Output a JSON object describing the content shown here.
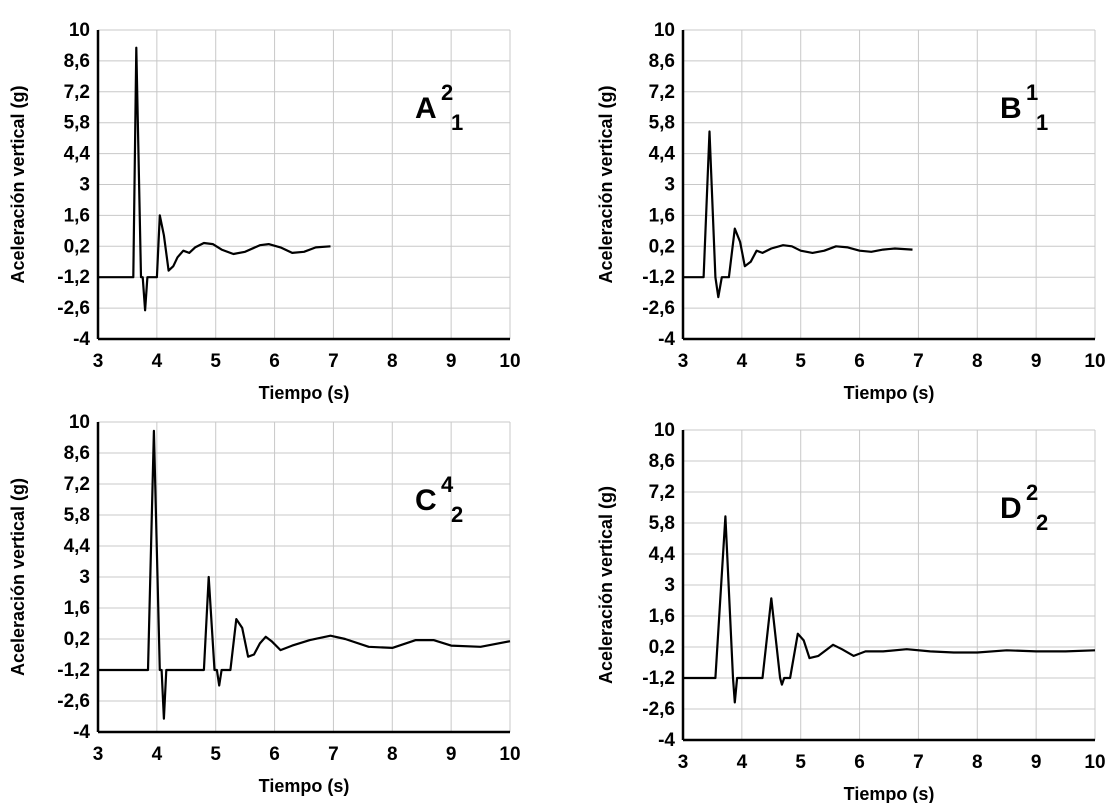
{
  "chart_data": [
    {
      "type": "line",
      "panel_label": {
        "letter": "A",
        "sup": "2",
        "sub": "1"
      },
      "xlabel": "Tiempo (s)",
      "ylabel": "Aceleración vertical (g)",
      "xlim": [
        3,
        10
      ],
      "ylim": [
        -4,
        10
      ],
      "x_ticks": [
        "3",
        "4",
        "5",
        "6",
        "7",
        "8",
        "9",
        "10"
      ],
      "y_ticks": [
        "10",
        "8,6",
        "7,2",
        "5,8",
        "4,4",
        "3",
        "1,6",
        "0,2",
        "-1,2",
        "-2,6",
        "-4"
      ],
      "grid": true,
      "series": [
        {
          "points": [
            [
              3.0,
              -1.2
            ],
            [
              3.55,
              -1.2
            ],
            [
              3.6,
              -1.2
            ],
            [
              3.65,
              9.2
            ],
            [
              3.73,
              -1.2
            ],
            [
              3.76,
              -1.2
            ],
            [
              3.8,
              -2.7
            ],
            [
              3.84,
              -1.2
            ],
            [
              4.0,
              -1.2
            ],
            [
              4.05,
              1.6
            ],
            [
              4.12,
              0.7
            ],
            [
              4.2,
              -0.9
            ],
            [
              4.28,
              -0.7
            ],
            [
              4.35,
              -0.3
            ],
            [
              4.45,
              0.0
            ],
            [
              4.55,
              -0.1
            ],
            [
              4.65,
              0.15
            ],
            [
              4.8,
              0.35
            ],
            [
              4.95,
              0.3
            ],
            [
              5.1,
              0.05
            ],
            [
              5.3,
              -0.15
            ],
            [
              5.5,
              -0.05
            ],
            [
              5.75,
              0.25
            ],
            [
              5.9,
              0.3
            ],
            [
              6.1,
              0.15
            ],
            [
              6.3,
              -0.1
            ],
            [
              6.5,
              -0.05
            ],
            [
              6.7,
              0.15
            ],
            [
              6.95,
              0.2
            ]
          ]
        }
      ]
    },
    {
      "type": "line",
      "panel_label": {
        "letter": "B",
        "sup": "1",
        "sub": "1"
      },
      "xlabel": "Tiempo (s)",
      "ylabel": "Aceleración vertical (g)",
      "xlim": [
        3,
        10
      ],
      "ylim": [
        -4,
        10
      ],
      "x_ticks": [
        "3",
        "4",
        "5",
        "6",
        "7",
        "8",
        "9",
        "10"
      ],
      "y_ticks": [
        "10",
        "8,6",
        "7,2",
        "5,8",
        "4,4",
        "3",
        "1,6",
        "0,2",
        "-1,2",
        "-2,6",
        "-4"
      ],
      "grid": true,
      "series": [
        {
          "points": [
            [
              3.0,
              -1.2
            ],
            [
              3.35,
              -1.2
            ],
            [
              3.45,
              5.4
            ],
            [
              3.55,
              -1.2
            ],
            [
              3.6,
              -2.1
            ],
            [
              3.66,
              -1.2
            ],
            [
              3.78,
              -1.2
            ],
            [
              3.88,
              1.0
            ],
            [
              3.97,
              0.4
            ],
            [
              4.05,
              -0.7
            ],
            [
              4.15,
              -0.5
            ],
            [
              4.25,
              0.0
            ],
            [
              4.35,
              -0.1
            ],
            [
              4.5,
              0.1
            ],
            [
              4.7,
              0.25
            ],
            [
              4.85,
              0.2
            ],
            [
              5.0,
              0.0
            ],
            [
              5.2,
              -0.1
            ],
            [
              5.4,
              0.0
            ],
            [
              5.6,
              0.2
            ],
            [
              5.8,
              0.15
            ],
            [
              6.0,
              0.0
            ],
            [
              6.2,
              -0.05
            ],
            [
              6.4,
              0.05
            ],
            [
              6.6,
              0.1
            ],
            [
              6.9,
              0.05
            ]
          ]
        }
      ]
    },
    {
      "type": "line",
      "panel_label": {
        "letter": "C",
        "sup": "4",
        "sub": "2"
      },
      "xlabel": "Tiempo (s)",
      "ylabel": "Aceleración vertical (g)",
      "xlim": [
        3,
        10
      ],
      "ylim": [
        -4,
        10
      ],
      "x_ticks": [
        "3",
        "4",
        "5",
        "6",
        "7",
        "8",
        "9",
        "10"
      ],
      "y_ticks": [
        "10",
        "8,6",
        "7,2",
        "5,8",
        "4,4",
        "3",
        "1,6",
        "0,2",
        "-1,2",
        "-2,6",
        "-4"
      ],
      "grid": true,
      "series": [
        {
          "points": [
            [
              3.0,
              -1.2
            ],
            [
              3.85,
              -1.2
            ],
            [
              3.95,
              9.6
            ],
            [
              4.05,
              -1.2
            ],
            [
              4.08,
              -1.2
            ],
            [
              4.12,
              -3.4
            ],
            [
              4.16,
              -1.2
            ],
            [
              4.8,
              -1.2
            ],
            [
              4.88,
              3.0
            ],
            [
              4.98,
              -1.2
            ],
            [
              5.02,
              -1.2
            ],
            [
              5.06,
              -1.9
            ],
            [
              5.1,
              -1.2
            ],
            [
              5.25,
              -1.2
            ],
            [
              5.35,
              1.1
            ],
            [
              5.45,
              0.7
            ],
            [
              5.55,
              -0.6
            ],
            [
              5.65,
              -0.5
            ],
            [
              5.75,
              0.0
            ],
            [
              5.85,
              0.3
            ],
            [
              5.95,
              0.1
            ],
            [
              6.1,
              -0.3
            ],
            [
              6.3,
              -0.1
            ],
            [
              6.6,
              0.15
            ],
            [
              6.95,
              0.35
            ],
            [
              7.2,
              0.2
            ],
            [
              7.6,
              -0.15
            ],
            [
              8.0,
              -0.2
            ],
            [
              8.4,
              0.15
            ],
            [
              8.7,
              0.15
            ],
            [
              9.0,
              -0.1
            ],
            [
              9.5,
              -0.15
            ],
            [
              10.0,
              0.1
            ]
          ]
        }
      ]
    },
    {
      "type": "line",
      "panel_label": {
        "letter": "D",
        "sup": "2",
        "sub": "2"
      },
      "xlabel": "Tiempo (s)",
      "ylabel": "Aceleración vertical (g)",
      "xlim": [
        3,
        10
      ],
      "ylim": [
        -4,
        10
      ],
      "x_ticks": [
        "3",
        "4",
        "5",
        "6",
        "7",
        "8",
        "9",
        "10"
      ],
      "y_ticks": [
        "10",
        "8,6",
        "7,2",
        "5,8",
        "4,4",
        "3",
        "1,6",
        "0,2",
        "-1,2",
        "-2,6",
        "-4"
      ],
      "grid": true,
      "series": [
        {
          "points": [
            [
              3.0,
              -1.2
            ],
            [
              3.55,
              -1.2
            ],
            [
              3.72,
              6.1
            ],
            [
              3.85,
              -1.2
            ],
            [
              3.88,
              -2.3
            ],
            [
              3.92,
              -1.2
            ],
            [
              4.35,
              -1.2
            ],
            [
              4.5,
              2.4
            ],
            [
              4.65,
              -1.2
            ],
            [
              4.68,
              -1.5
            ],
            [
              4.72,
              -1.2
            ],
            [
              4.82,
              -1.2
            ],
            [
              4.95,
              0.8
            ],
            [
              5.05,
              0.5
            ],
            [
              5.15,
              -0.3
            ],
            [
              5.3,
              -0.2
            ],
            [
              5.45,
              0.1
            ],
            [
              5.55,
              0.3
            ],
            [
              5.7,
              0.1
            ],
            [
              5.9,
              -0.2
            ],
            [
              6.1,
              0.0
            ],
            [
              6.4,
              0.0
            ],
            [
              6.8,
              0.1
            ],
            [
              7.2,
              0.0
            ],
            [
              7.6,
              -0.05
            ],
            [
              8.0,
              -0.05
            ],
            [
              8.5,
              0.05
            ],
            [
              9.0,
              0.0
            ],
            [
              9.5,
              0.0
            ],
            [
              10.0,
              0.05
            ]
          ]
        }
      ]
    }
  ]
}
